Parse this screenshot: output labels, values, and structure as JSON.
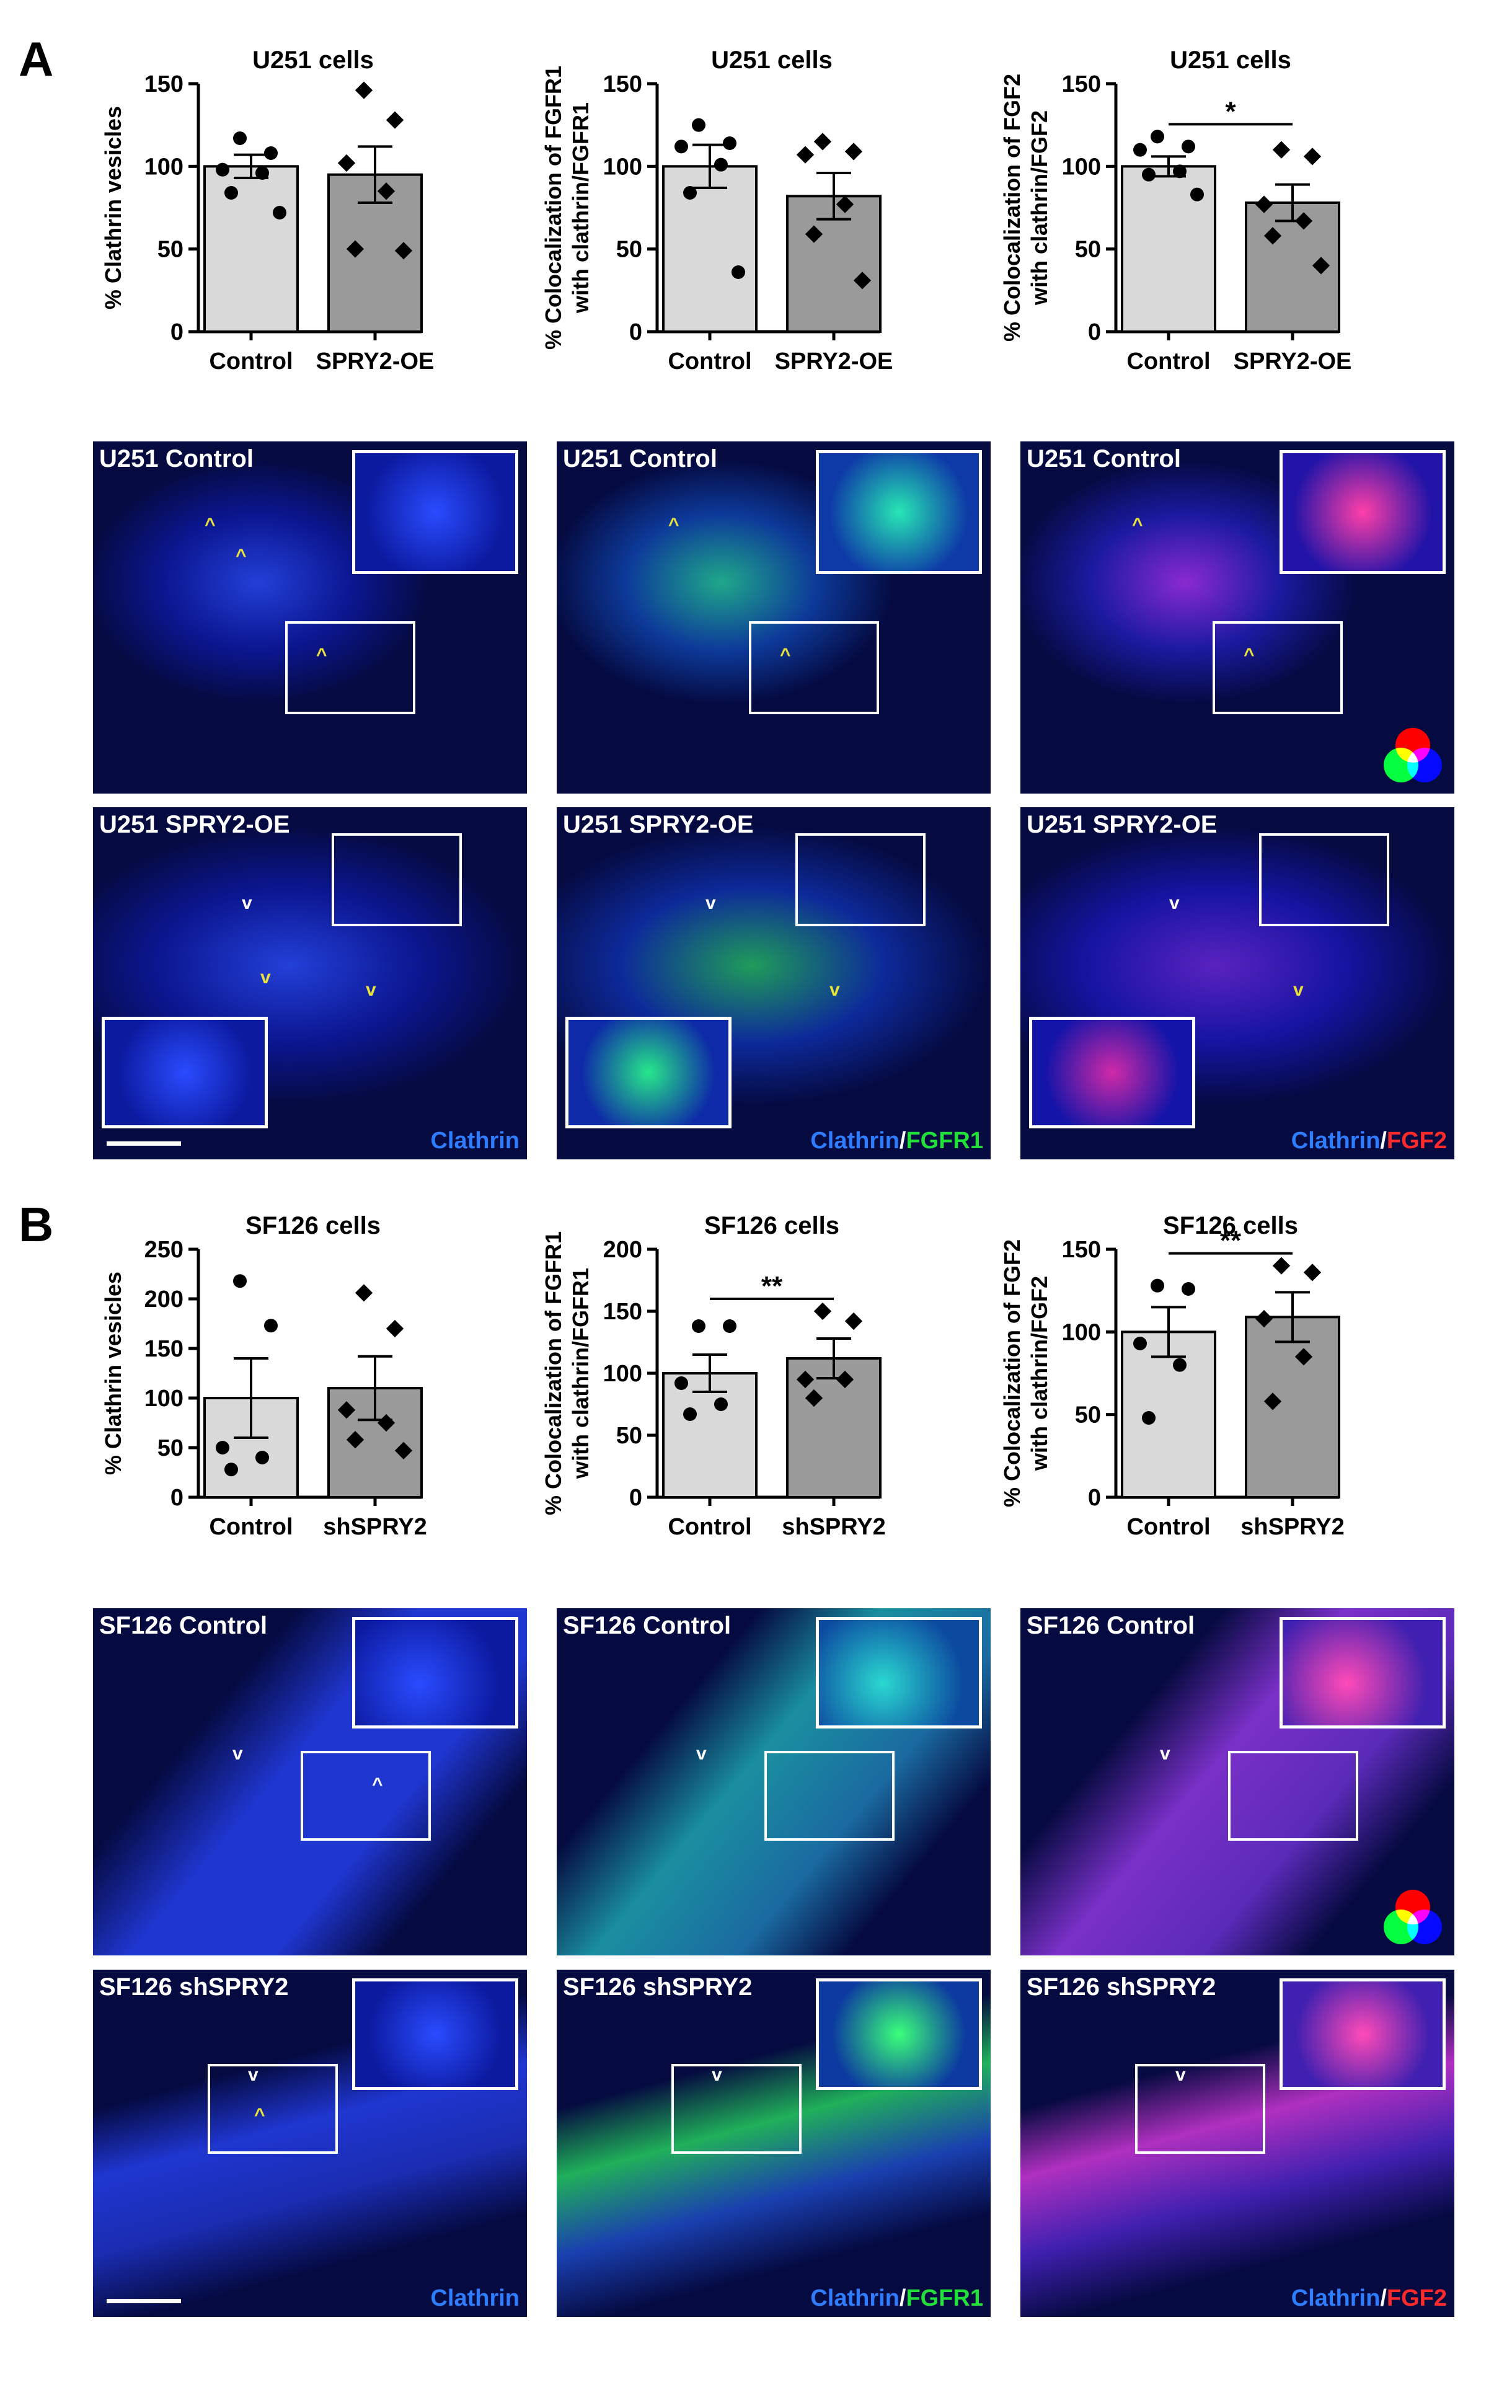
{
  "panels": [
    {
      "letter": "A",
      "charts": [
        {
          "type": "bar",
          "title": "U251 cells",
          "ylabel": "% Clathrin vesicles",
          "ylim": [
            0,
            150
          ],
          "yticks": [
            0,
            50,
            100,
            150
          ],
          "categories": [
            "Control",
            "SPRY2-OE"
          ],
          "values": [
            100,
            95
          ],
          "sem": [
            7,
            17
          ],
          "points": [
            [
              117,
              108,
              98,
              96,
              84,
              72
            ],
            [
              146,
              128,
              102,
              85,
              50,
              49
            ]
          ],
          "significance": ""
        },
        {
          "type": "bar",
          "title": "U251 cells",
          "ylabel": "% Colocalization of FGFR1 with clathrin/FGFR1",
          "ylim": [
            0,
            150
          ],
          "yticks": [
            0,
            50,
            100,
            150
          ],
          "categories": [
            "Control",
            "SPRY2-OE"
          ],
          "values": [
            100,
            82
          ],
          "sem": [
            13,
            14
          ],
          "points": [
            [
              125,
              114,
              112,
              101,
              84,
              36
            ],
            [
              115,
              109,
              107,
              77,
              59,
              31
            ]
          ],
          "significance": ""
        },
        {
          "type": "bar",
          "title": "U251 cells",
          "ylabel": "% Colocalization of FGF2 with clathrin/FGF2",
          "ylim": [
            0,
            150
          ],
          "yticks": [
            0,
            50,
            100,
            150
          ],
          "categories": [
            "Control",
            "SPRY2-OE"
          ],
          "values": [
            100,
            78
          ],
          "sem": [
            6,
            11
          ],
          "points": [
            [
              118,
              112,
              110,
              97,
              95,
              83
            ],
            [
              110,
              106,
              77,
              67,
              58,
              40
            ]
          ],
          "significance": "*"
        }
      ],
      "rows": [
        {
          "condition": "U251 Control",
          "images": [
            {
              "label": "U251 Control",
              "channels": [
                {
                  "text": "",
                  "color": "blue"
                }
              ]
            },
            {
              "label": "U251 Control",
              "channels": [
                {
                  "text": "",
                  "color": "blue"
                }
              ]
            },
            {
              "label": "U251 Control",
              "channels": [
                {
                  "text": "",
                  "color": "blue"
                }
              ]
            }
          ]
        },
        {
          "condition": "U251 SPRY2-OE",
          "images": [
            {
              "label": "U251 SPRY2-OE",
              "channels": [
                {
                  "text": "Clathrin",
                  "color": "blue"
                }
              ]
            },
            {
              "label": "U251 SPRY2-OE",
              "channels": [
                {
                  "text": "Clathrin",
                  "color": "blue"
                },
                {
                  "text": "/",
                  "color": "white"
                },
                {
                  "text": "FGFR1",
                  "color": "green"
                }
              ]
            },
            {
              "label": "U251 SPRY2-OE",
              "channels": [
                {
                  "text": "Clathrin",
                  "color": "blue"
                },
                {
                  "text": "/",
                  "color": "white"
                },
                {
                  "text": "FGF2",
                  "color": "red"
                }
              ]
            }
          ]
        }
      ]
    },
    {
      "letter": "B",
      "charts": [
        {
          "type": "bar",
          "title": "SF126 cells",
          "ylabel": "% Clathrin vesicles",
          "ylim": [
            0,
            250
          ],
          "yticks": [
            0,
            50,
            100,
            150,
            200,
            250
          ],
          "categories": [
            "Control",
            "shSPRY2"
          ],
          "values": [
            100,
            110
          ],
          "sem": [
            40,
            32
          ],
          "points": [
            [
              218,
              173,
              50,
              40,
              28
            ],
            [
              206,
              170,
              88,
              75,
              58,
              47
            ]
          ],
          "significance": ""
        },
        {
          "type": "bar",
          "title": "SF126 cells",
          "ylabel": "% Colocalization of FGFR1 with clathrin/FGFR1",
          "ylim": [
            0,
            200
          ],
          "yticks": [
            0,
            50,
            100,
            150,
            200
          ],
          "categories": [
            "Control",
            "shSPRY2"
          ],
          "values": [
            100,
            112
          ],
          "sem": [
            15,
            16
          ],
          "points": [
            [
              138,
              138,
              92,
              75,
              67
            ],
            [
              150,
              142,
              95,
              95,
              80
            ]
          ],
          "significance": "**"
        },
        {
          "type": "bar",
          "title": "SF126 cells",
          "ylabel": "% Colocalization of FGF2 with clathrin/FGF2",
          "ylim": [
            0,
            150
          ],
          "yticks": [
            0,
            50,
            100,
            150
          ],
          "categories": [
            "Control",
            "shSPRY2"
          ],
          "values": [
            100,
            109
          ],
          "sem": [
            15,
            15
          ],
          "points": [
            [
              128,
              126,
              93,
              80,
              48
            ],
            [
              140,
              136,
              108,
              85,
              58
            ]
          ],
          "significance": "**"
        }
      ],
      "rows": [
        {
          "condition": "SF126 Control",
          "images": [
            {
              "label": "SF126 Control",
              "channels": [
                {
                  "text": "",
                  "color": "blue"
                }
              ]
            },
            {
              "label": "SF126 Control",
              "channels": [
                {
                  "text": "",
                  "color": "blue"
                }
              ]
            },
            {
              "label": "SF126 Control",
              "channels": [
                {
                  "text": "",
                  "color": "blue"
                }
              ]
            }
          ]
        },
        {
          "condition": "SF126 shSPRY2",
          "images": [
            {
              "label": "SF126 shSPRY2",
              "channels": [
                {
                  "text": "Clathrin",
                  "color": "blue"
                }
              ]
            },
            {
              "label": "SF126 shSPRY2",
              "channels": [
                {
                  "text": "Clathrin",
                  "color": "blue"
                },
                {
                  "text": "/",
                  "color": "white"
                },
                {
                  "text": "FGFR1",
                  "color": "green"
                }
              ]
            },
            {
              "label": "SF126 shSPRY2",
              "channels": [
                {
                  "text": "Clathrin",
                  "color": "blue"
                },
                {
                  "text": "/",
                  "color": "white"
                },
                {
                  "text": "FGF2",
                  "color": "red"
                }
              ]
            }
          ]
        }
      ]
    }
  ],
  "colors": {
    "bar_control": "#d9d9d9",
    "bar_treated": "#9a9a9a",
    "blue": "#2e7dff",
    "green": "#22e03a",
    "red": "#ff2a2a",
    "yellow": "#e8e23a",
    "white": "#ffffff"
  }
}
